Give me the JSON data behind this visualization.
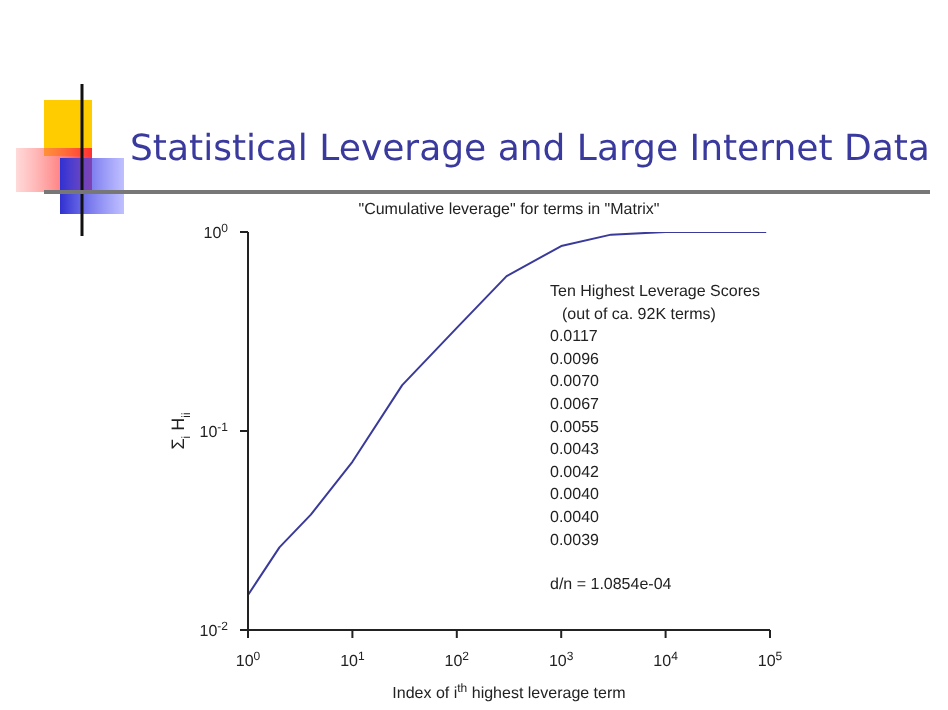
{
  "chart_data": {
    "type": "line",
    "title": "Statistical Leverage and Large Internet Data",
    "subtitle": "\"Cumulative leverage\" for terms in \"Matrix\"",
    "xlabel": "Index of i$^{th}$ highest leverage term",
    "ylabel": "Σ$_{i}$ H$_{ii}$",
    "x": [
      1,
      2,
      4,
      10,
      30,
      100,
      300,
      1000,
      3000,
      10000,
      92000
    ],
    "series": [
      {
        "color": "#3a3a9a",
        "values": [
          0.015,
          0.026,
          0.038,
          0.07,
          0.17,
          0.33,
          0.6,
          0.85,
          0.97,
          1.0,
          1.0
        ]
      }
    ],
    "xlim": [
      1,
      100000
    ],
    "ylim": [
      0.01,
      1
    ],
    "log": "xy",
    "xticks": [
      {
        "value": 1,
        "label": "10$^{0}$"
      },
      {
        "value": 10,
        "label": "10$^{1}$"
      },
      {
        "value": 100,
        "label": "10$^{2}$"
      },
      {
        "value": 1000,
        "label": "10$^{3}$"
      },
      {
        "value": 10000,
        "label": "10$^{4}$"
      },
      {
        "value": 100000,
        "label": "10$^{5}$"
      }
    ],
    "yticks": [
      {
        "value": 0.01,
        "label": "10$^{-2}$"
      },
      {
        "value": 0.1,
        "label": "10$^{-1}$"
      },
      {
        "value": 1,
        "label": "10$^{0}$"
      }
    ],
    "annotations": [
      "Ten Highest Leverage Scores",
      "(out of ca. 92K terms)",
      "0.0117",
      "0.0096",
      "0.0070",
      "0.0067",
      "0.0055",
      "0.0043",
      "0.0042",
      "0.0040",
      "0.0040",
      "0.0039",
      "d/n = 1.0854e-04"
    ]
  }
}
